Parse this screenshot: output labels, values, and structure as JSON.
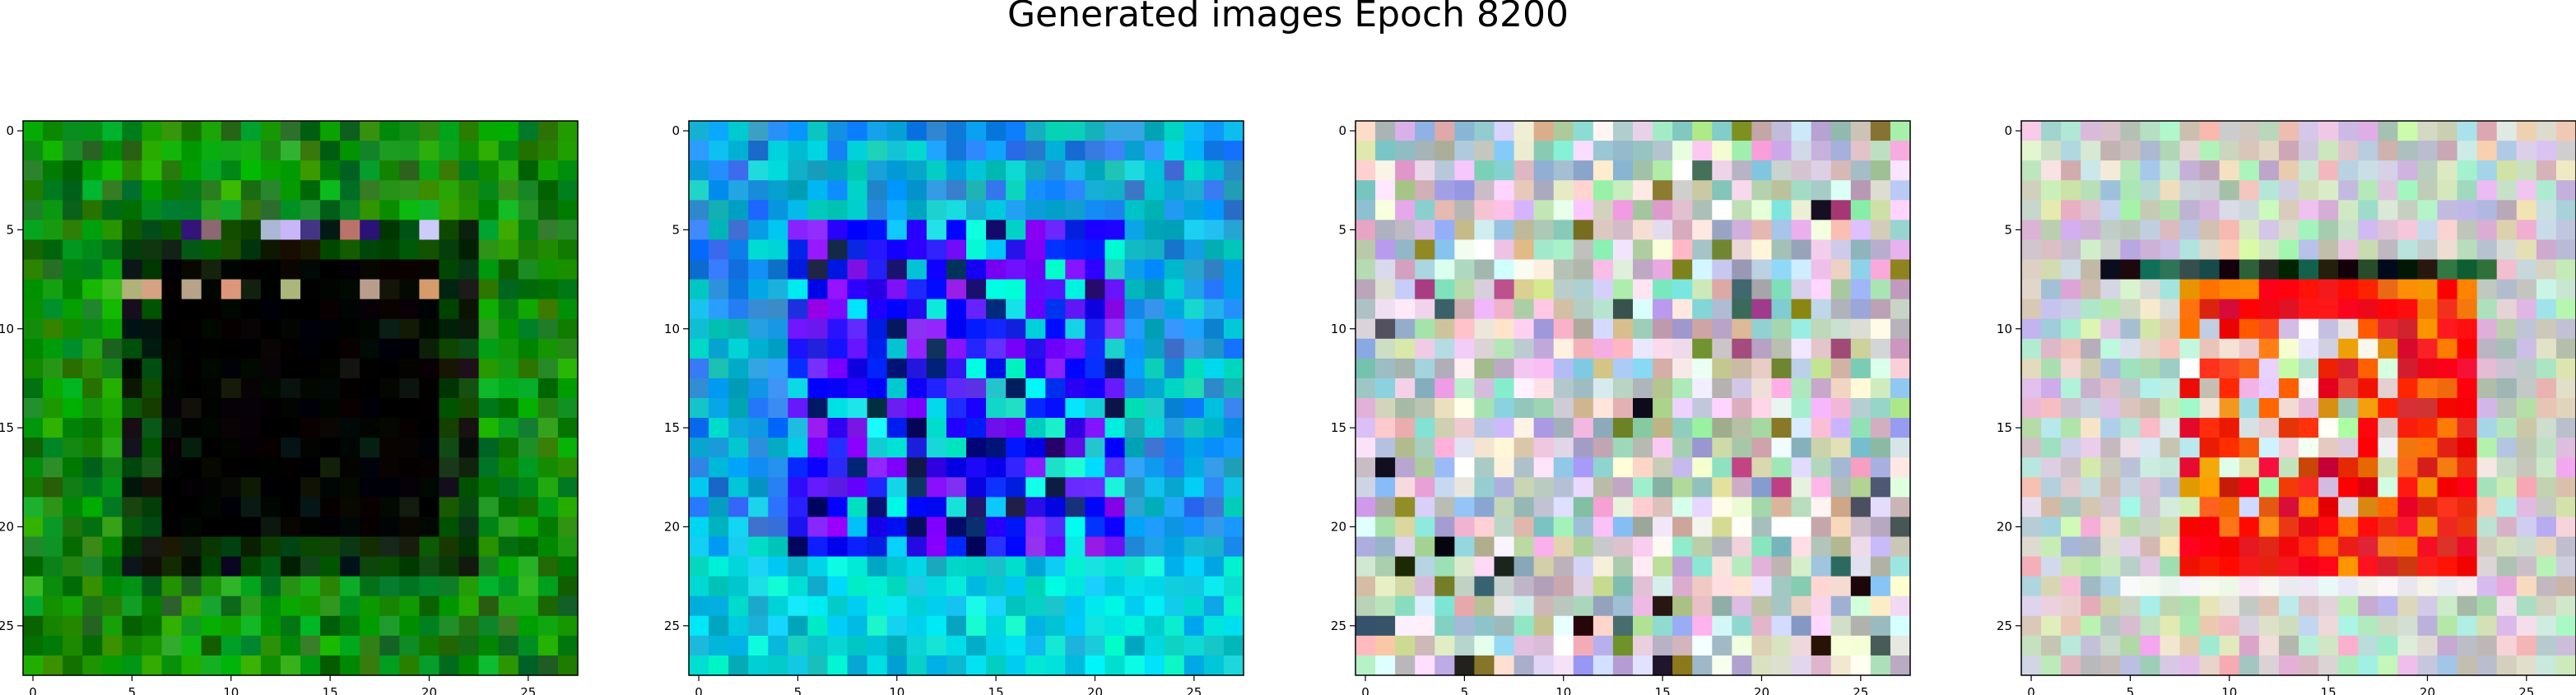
{
  "title": "Generated images Epoch 8200",
  "chart_data": [
    {
      "type": "heatmap",
      "title": "",
      "palette": "green-frame",
      "grid_size": [
        28,
        28
      ],
      "xlim": [
        -0.5,
        27.5
      ],
      "ylim": [
        27.5,
        -0.5
      ],
      "xticks": [
        "0",
        "5",
        "10",
        "15",
        "20",
        "25"
      ],
      "yticks": [
        "0",
        "5",
        "10",
        "15",
        "20",
        "25"
      ],
      "grid": false,
      "colors": [
        "#0a7f0a",
        "#1a9a10",
        "#064806",
        "#000000",
        "#0d1a0d",
        "#c8a080",
        "#b03030"
      ]
    },
    {
      "type": "heatmap",
      "title": "",
      "palette": "blue-frame",
      "grid_size": [
        28,
        28
      ],
      "xlim": [
        -0.5,
        27.5
      ],
      "ylim": [
        27.5,
        -0.5
      ],
      "xticks": [
        "0",
        "5",
        "10",
        "15",
        "20",
        "25"
      ],
      "yticks": [
        "0",
        "5",
        "10",
        "15",
        "20",
        "25"
      ],
      "grid": false,
      "colors": [
        "#1e88e5",
        "#00bcd4",
        "#1010ff",
        "#7a10ff",
        "#00e0e0",
        "#0a1a60"
      ]
    },
    {
      "type": "heatmap",
      "title": "",
      "palette": "pastel-noise",
      "grid_size": [
        28,
        28
      ],
      "xlim": [
        -0.5,
        27.5
      ],
      "ylim": [
        27.5,
        -0.5
      ],
      "xticks": [
        "0",
        "5",
        "10",
        "15",
        "20",
        "25"
      ],
      "yticks": [
        "0",
        "5",
        "10",
        "15",
        "20",
        "25"
      ],
      "grid": false,
      "colors": [
        "#d8b8c8",
        "#c0c8a8",
        "#e8d0e0",
        "#a0b8d8",
        "#98d0c0",
        "#f0f0f0",
        "#b04080"
      ]
    },
    {
      "type": "heatmap",
      "title": "",
      "palette": "red-frame",
      "grid_size": [
        28,
        28
      ],
      "xlim": [
        -0.5,
        27.5
      ],
      "ylim": [
        27.5,
        -0.5
      ],
      "xticks": [
        "0",
        "5",
        "10",
        "15",
        "20",
        "25"
      ],
      "yticks": [
        "0",
        "5",
        "10",
        "15",
        "20",
        "25"
      ],
      "grid": false,
      "colors": [
        "#ff1010",
        "#e82020",
        "#ff8000",
        "#d8c8d0",
        "#c0d8c8",
        "#f0f0f0",
        "#101010"
      ]
    }
  ]
}
